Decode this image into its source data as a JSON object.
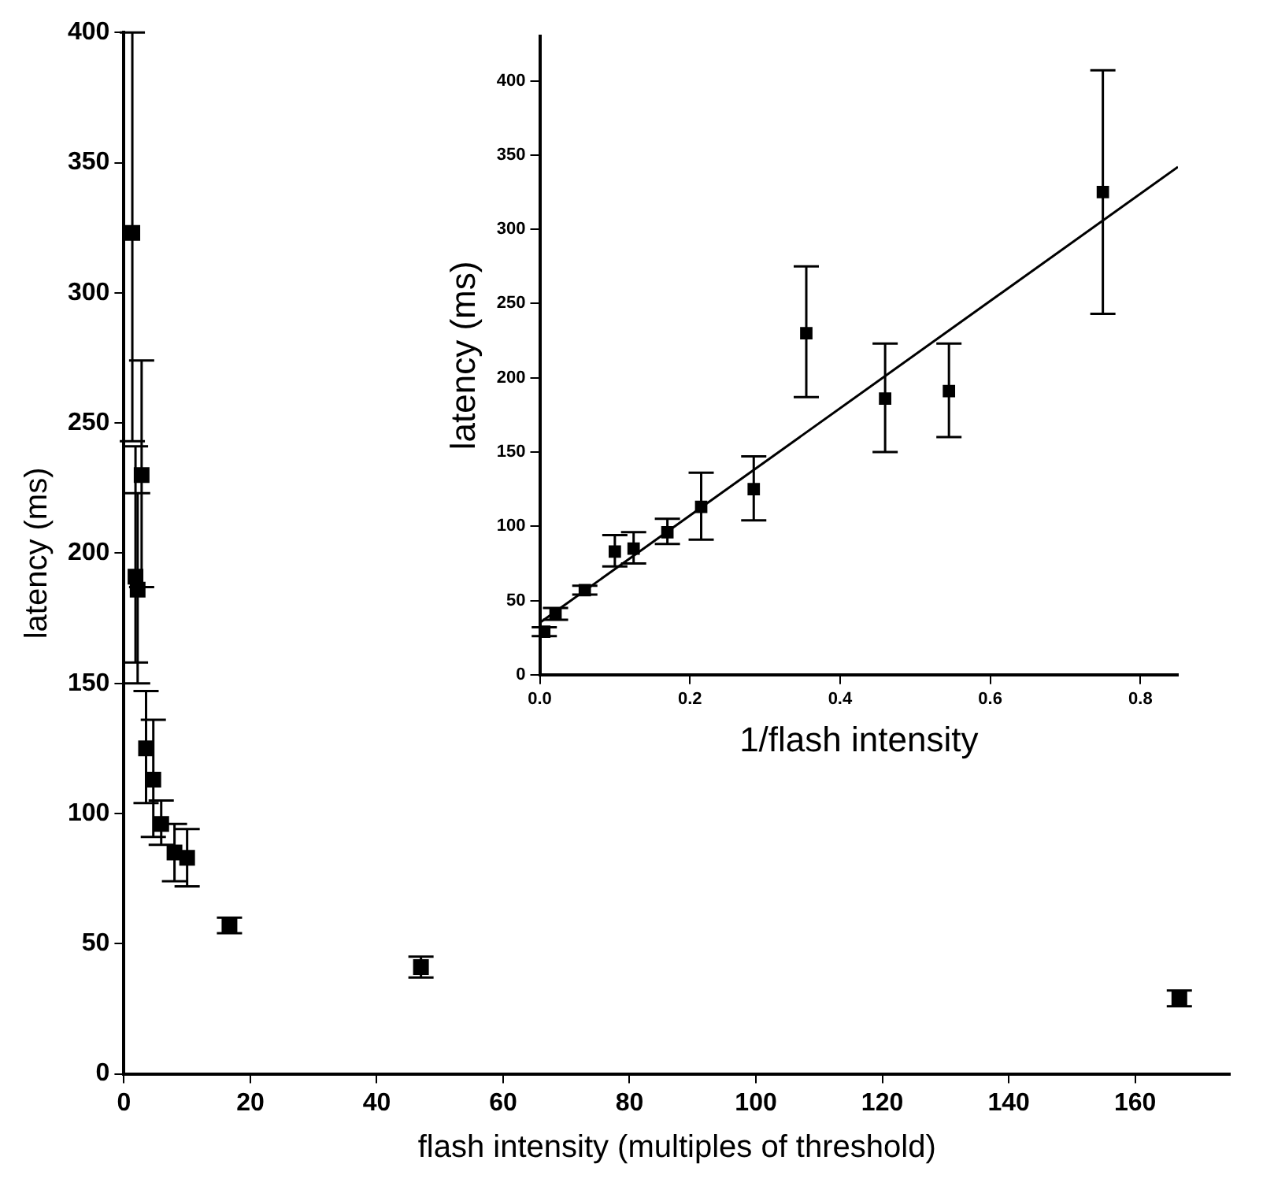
{
  "chart_data": [
    {
      "type": "scatter",
      "xlabel": "flash intensity (multiples of threshold)",
      "ylabel": "latency (ms)",
      "xlim": [
        0,
        175
      ],
      "xticks": [
        0,
        20,
        40,
        60,
        80,
        100,
        120,
        140,
        160
      ],
      "ylim": [
        0,
        400
      ],
      "yticks": [
        0,
        50,
        100,
        150,
        200,
        250,
        300,
        350,
        400
      ],
      "grid": false,
      "legend": false,
      "marker": "square",
      "series": [
        {
          "color": "#000000",
          "x": [
            167,
            47,
            16.7,
            10,
            8,
            5.9,
            4.65,
            3.5,
            2.8,
            2.17,
            1.83,
            1.33
          ],
          "values": [
            29,
            41,
            57,
            83,
            85,
            96,
            113,
            125,
            230,
            186,
            191,
            323
          ],
          "errors": [
            [
              26,
              32
            ],
            [
              37,
              45
            ],
            [
              54,
              60
            ],
            [
              72,
              94
            ],
            [
              74,
              96
            ],
            [
              88,
              105
            ],
            [
              91,
              136
            ],
            [
              104,
              147
            ],
            [
              187,
              274
            ],
            [
              150,
              223
            ],
            [
              158,
              241
            ],
            [
              243,
              400
            ]
          ]
        }
      ]
    },
    {
      "type": "scatter",
      "xlabel": "1/flash intensity",
      "ylabel": "latency (ms)",
      "xlim": [
        0,
        0.85
      ],
      "xticks": [
        {
          "value": 0,
          "label": "0.0"
        },
        0.2,
        0.4,
        0.6,
        0.8
      ],
      "ylim": [
        0,
        430
      ],
      "yticks": [
        0,
        50,
        100,
        150,
        200,
        250,
        300,
        350,
        400
      ],
      "grid": false,
      "legend": false,
      "marker": "square",
      "series": [
        {
          "color": "#000000",
          "x": [
            0.006,
            0.021,
            0.06,
            0.1,
            0.125,
            0.17,
            0.215,
            0.285,
            0.355,
            0.46,
            0.545,
            0.75
          ],
          "values": [
            29,
            41,
            57,
            83,
            85,
            96,
            113,
            125,
            230,
            186,
            191,
            325
          ],
          "errors": [
            [
              26,
              32
            ],
            [
              37,
              45
            ],
            [
              54,
              60
            ],
            [
              73,
              94
            ],
            [
              75,
              96
            ],
            [
              88,
              105
            ],
            [
              91,
              136
            ],
            [
              104,
              147
            ],
            [
              187,
              275
            ],
            [
              150,
              223
            ],
            [
              160,
              223
            ],
            [
              243,
              407
            ]
          ]
        },
        {
          "type": "line",
          "color": "#000000",
          "marker": "none",
          "x": [
            0,
            0.85
          ],
          "values": [
            35,
            342
          ]
        }
      ]
    }
  ]
}
